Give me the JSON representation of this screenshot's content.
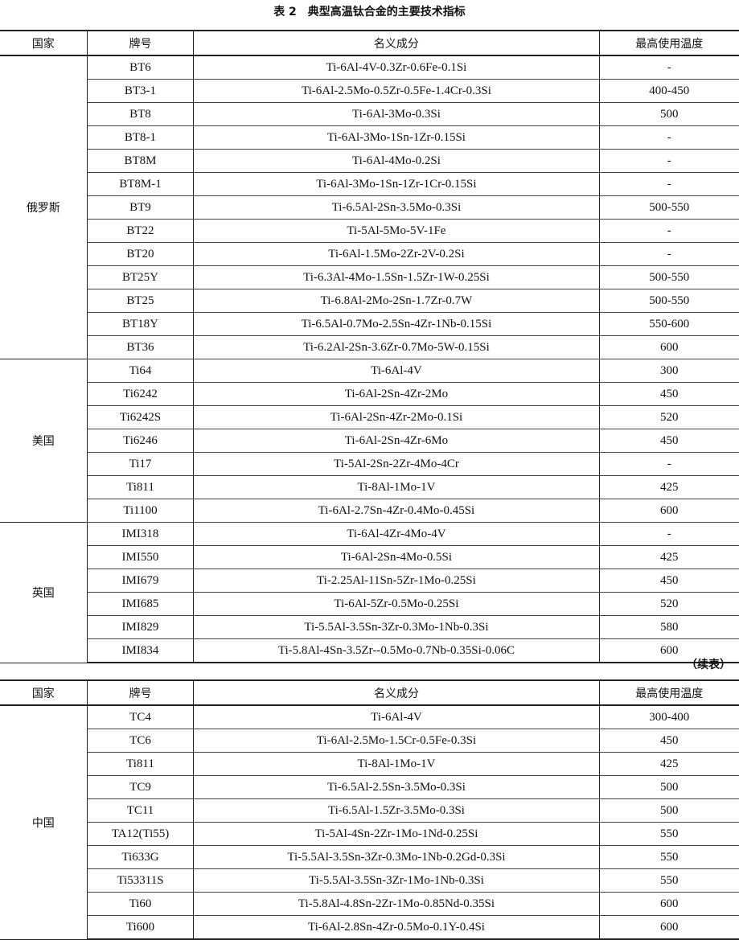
{
  "title": "表 2　典型高温钛合金的主要技术指标",
  "continued_label": "（续表）",
  "headers": {
    "country": "国家",
    "grade": "牌号",
    "composition": "名义成分",
    "max_temp": "最高使用温度"
  },
  "table1": [
    {
      "country": "俄罗斯",
      "rows": [
        [
          "BT6",
          "Ti-6Al-4V-0.3Zr-0.6Fe-0.1Si",
          "-"
        ],
        [
          "BT3-1",
          "Ti-6Al-2.5Mo-0.5Zr-0.5Fe-1.4Cr-0.3Si",
          "400-450"
        ],
        [
          "BT8",
          "Ti-6Al-3Mo-0.3Si",
          "500"
        ],
        [
          "BT8-1",
          "Ti-6Al-3Mo-1Sn-1Zr-0.15Si",
          "-"
        ],
        [
          "BT8M",
          "Ti-6Al-4Mo-0.2Si",
          "-"
        ],
        [
          "BT8M-1",
          "Ti-6Al-3Mo-1Sn-1Zr-1Cr-0.15Si",
          "-"
        ],
        [
          "BT9",
          "Ti-6.5Al-2Sn-3.5Mo-0.3Si",
          "500-550"
        ],
        [
          "BT22",
          "Ti-5Al-5Mo-5V-1Fe",
          "-"
        ],
        [
          "BT20",
          "Ti-6Al-1.5Mo-2Zr-2V-0.2Si",
          "-"
        ],
        [
          "BT25Y",
          "Ti-6.3Al-4Mo-1.5Sn-1.5Zr-1W-0.25Si",
          "500-550"
        ],
        [
          "BT25",
          "Ti-6.8Al-2Mo-2Sn-1.7Zr-0.7W",
          "500-550"
        ],
        [
          "BT18Y",
          "Ti-6.5Al-0.7Mo-2.5Sn-4Zr-1Nb-0.15Si",
          "550-600"
        ],
        [
          "BT36",
          "Ti-6.2Al-2Sn-3.6Zr-0.7Mo-5W-0.15Si",
          "600"
        ]
      ]
    },
    {
      "country": "美国",
      "rows": [
        [
          "Ti64",
          "Ti-6Al-4V",
          "300"
        ],
        [
          "Ti6242",
          "Ti-6Al-2Sn-4Zr-2Mo",
          "450"
        ],
        [
          "Ti6242S",
          "Ti-6Al-2Sn-4Zr-2Mo-0.1Si",
          "520"
        ],
        [
          "Ti6246",
          "Ti-6Al-2Sn-4Zr-6Mo",
          "450"
        ],
        [
          "Ti17",
          "Ti-5Al-2Sn-2Zr-4Mo-4Cr",
          "-"
        ],
        [
          "Ti811",
          "Ti-8Al-1Mo-1V",
          "425"
        ],
        [
          "Ti1100",
          "Ti-6Al-2.7Sn-4Zr-0.4Mo-0.45Si",
          "600"
        ]
      ]
    },
    {
      "country": "英国",
      "rows": [
        [
          "IMI318",
          "Ti-6Al-4Zr-4Mo-4V",
          "-"
        ],
        [
          "IMI550",
          "Ti-6Al-2Sn-4Mo-0.5Si",
          "425"
        ],
        [
          "IMI679",
          "Ti-2.25Al-11Sn-5Zr-1Mo-0.25Si",
          "450"
        ],
        [
          "IMI685",
          "Ti-6Al-5Zr-0.5Mo-0.25Si",
          "520"
        ],
        [
          "IMI829",
          "Ti-5.5Al-3.5Sn-3Zr-0.3Mo-1Nb-0.3Si",
          "580"
        ],
        [
          "IMI834",
          "Ti-5.8Al-4Sn-3.5Zr--0.5Mo-0.7Nb-0.35Si-0.06C",
          "600"
        ]
      ]
    }
  ],
  "table2": [
    {
      "country": "中国",
      "rows": [
        [
          "TC4",
          "Ti-6Al-4V",
          "300-400"
        ],
        [
          "TC6",
          "Ti-6Al-2.5Mo-1.5Cr-0.5Fe-0.3Si",
          "450"
        ],
        [
          "Ti811",
          "Ti-8Al-1Mo-1V",
          "425"
        ],
        [
          "TC9",
          "Ti-6.5Al-2.5Sn-3.5Mo-0.3Si",
          "500"
        ],
        [
          "TC11",
          "Ti-6.5Al-1.5Zr-3.5Mo-0.3Si",
          "500"
        ],
        [
          "TA12(Ti55)",
          "Ti-5Al-4Sn-2Zr-1Mo-1Nd-0.25Si",
          "550"
        ],
        [
          "Ti633G",
          "Ti-5.5Al-3.5Sn-3Zr-0.3Mo-1Nb-0.2Gd-0.3Si",
          "550"
        ],
        [
          "Ti53311S",
          "Ti-5.5Al-3.5Sn-3Zr-1Mo-1Nb-0.3Si",
          "550"
        ],
        [
          "Ti60",
          "Ti-5.8Al-4.8Sn-2Zr-1Mo-0.85Nd-0.35Si",
          "600"
        ],
        [
          "Ti600",
          "Ti-6Al-2.8Sn-4Zr-0.5Mo-0.1Y-0.4Si",
          "600"
        ]
      ]
    }
  ]
}
